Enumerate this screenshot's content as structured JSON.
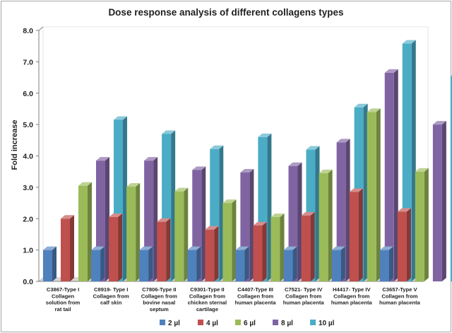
{
  "chart_data": {
    "type": "bar",
    "title": "Dose response analysis of different collagens types",
    "ylabel": "Fold increase",
    "xlabel": "",
    "ylim": [
      0,
      8
    ],
    "yticks": [
      "0.0",
      "1.0",
      "2.0",
      "3.0",
      "4.0",
      "5.0",
      "6.0",
      "7.0",
      "8.0"
    ],
    "grid": false,
    "legend_position": "bottom",
    "style": "3d-bar",
    "categories": [
      [
        "C3867-Type I",
        "Collagen",
        "solution from",
        "rat tail"
      ],
      [
        "C8919-  Type  I",
        "Collagen from",
        "calf skin"
      ],
      [
        "C7806-Type II",
        "Collagen from",
        "bovine nasal",
        "septum"
      ],
      [
        "C9301-Type II",
        "Collagen from",
        "chicken sternal",
        "cartilage"
      ],
      [
        "C4407-Type III",
        "Collagen from",
        "human placenta"
      ],
      [
        "C7521-  Type IV",
        "Collagen from",
        "human placenta"
      ],
      [
        "H4417-  Type IV",
        "Collagen from",
        "human placenta"
      ],
      [
        "C3657-Type V",
        "Collagen from",
        "human placenta"
      ]
    ],
    "series": [
      {
        "name": "2 µl",
        "color": "#4f81bd",
        "values": [
          1.0,
          1.0,
          1.0,
          1.0,
          1.0,
          1.0,
          1.0,
          1.0
        ]
      },
      {
        "name": "4 µl",
        "color": "#c0504d",
        "values": [
          2.0,
          2.05,
          1.9,
          1.65,
          1.78,
          2.1,
          2.85,
          2.22
        ]
      },
      {
        "name": "6 µl",
        "color": "#9bbb59",
        "values": [
          3.05,
          3.02,
          2.87,
          2.5,
          2.05,
          3.45,
          5.4,
          3.5
        ]
      },
      {
        "name": "8 µl",
        "color": "#8064a2",
        "values": [
          3.85,
          3.85,
          3.55,
          3.47,
          3.68,
          4.43,
          6.65,
          5.0
        ]
      },
      {
        "name": "10 µl",
        "color": "#4bacc6",
        "values": [
          5.15,
          4.7,
          4.22,
          4.6,
          4.2,
          5.55,
          7.58,
          6.55
        ]
      }
    ]
  }
}
